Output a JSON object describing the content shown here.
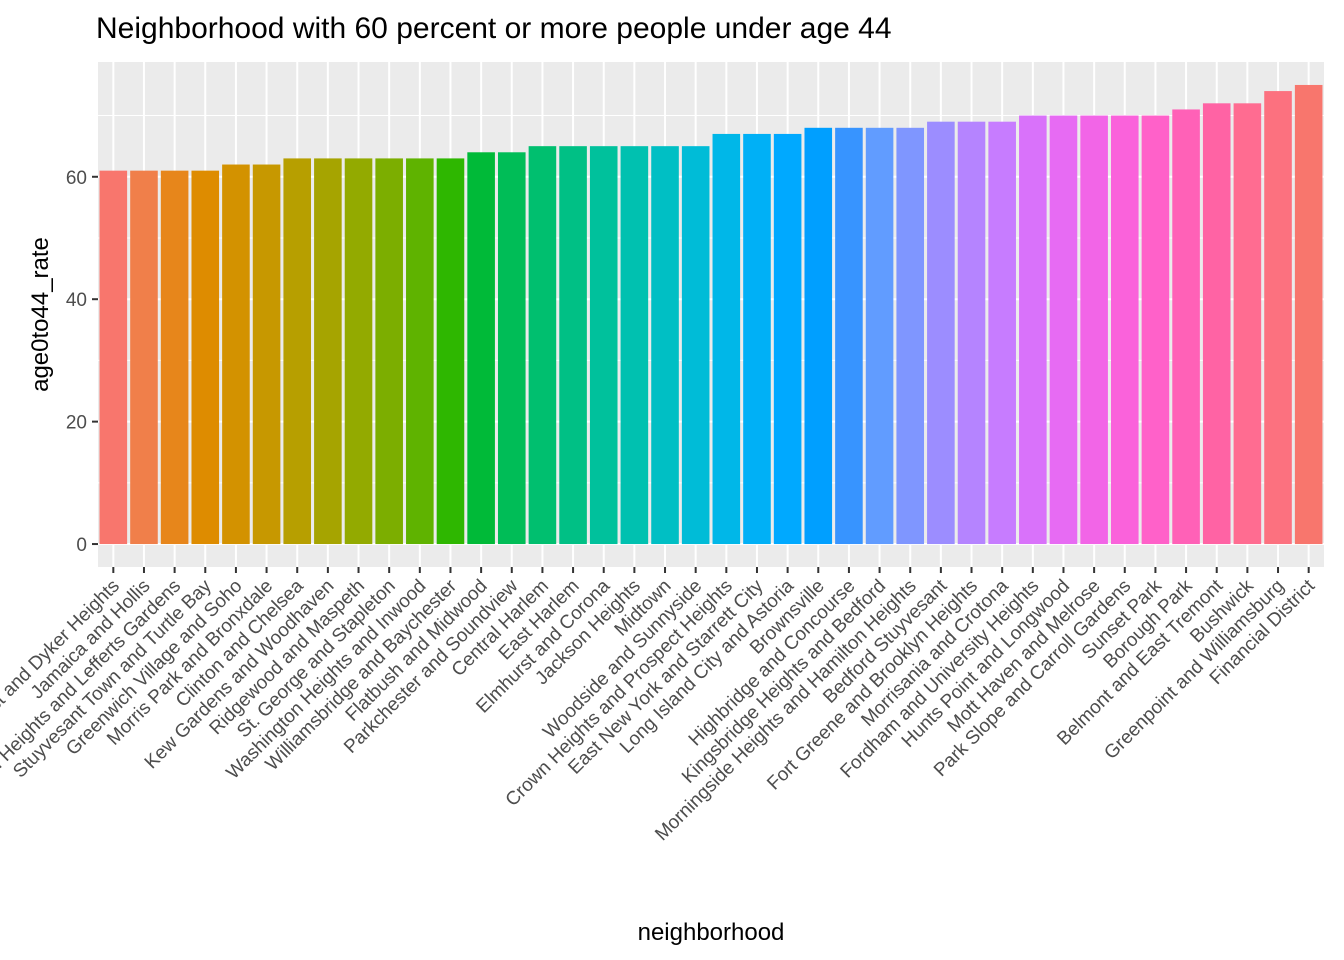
{
  "chart_data": {
    "type": "bar",
    "title": "Neighborhood with 60 percent or more people under age 44",
    "xlabel": "neighborhood",
    "ylabel": "age0to44_rate",
    "ylim": [
      -3.75,
      78.75
    ],
    "yticks": [
      0,
      20,
      40,
      60
    ],
    "grid": true,
    "legend": "none",
    "categories": [
      "Bensonhurst and Dyker Heights",
      "Jamaica and Hollis",
      "Crown Heights and Lefferts Gardens",
      "Stuyvesant Town and Turtle Bay",
      "Greenwich Village and Soho",
      "Morris Park and Bronxdale",
      "Clinton and Chelsea",
      "Kew Gardens and Woodhaven",
      "Ridgewood and Maspeth",
      "St. George and Stapleton",
      "Washington Heights and Inwood",
      "Williamsbridge and Baychester",
      "Flatbush and Midwood",
      "Parkchester and Soundview",
      "Central Harlem",
      "East Harlem",
      "Elmhurst and Corona",
      "Jackson Heights",
      "Midtown",
      "Woodside and Sunnyside",
      "Crown Heights and Prospect Heights",
      "East New York and Starrett City",
      "Long Island City and Astoria",
      "Brownsville",
      "Highbridge and Concourse",
      "Kingsbridge Heights and Bedford",
      "Morningside Heights and Hamilton Heights",
      "Bedford Stuyvesant",
      "Fort Greene and Brooklyn Heights",
      "Morrisania and Crotona",
      "Fordham and University Heights",
      "Hunts Point and Longwood",
      "Mott Haven and Melrose",
      "Park Slope and Carroll Gardens",
      "Sunset Park",
      "Borough Park",
      "Belmont and East Tremont",
      "Bushwick",
      "Greenpoint and Williamsburg",
      "Financial District"
    ],
    "values": [
      61,
      61,
      61,
      61,
      62,
      62,
      63,
      63,
      63,
      63,
      63,
      63,
      64,
      64,
      65,
      65,
      65,
      65,
      65,
      65,
      67,
      67,
      67,
      68,
      68,
      68,
      68,
      69,
      69,
      69,
      70,
      70,
      70,
      70,
      70,
      71,
      72,
      72,
      74,
      75
    ],
    "colors": [
      "#F8766D",
      "#F07F4A",
      "#E7861B",
      "#DE8C00",
      "#D39200",
      "#C79800",
      "#B79F00",
      "#A6A400",
      "#93AA00",
      "#7CAE00",
      "#5FB300",
      "#2EB700",
      "#00BA38",
      "#00BD57",
      "#00BF6F",
      "#00C085",
      "#00C19C",
      "#00C1B0",
      "#00BFC4",
      "#00BCD7",
      "#00B7E8",
      "#00B0F6",
      "#00A9FF",
      "#009FFF",
      "#3794FF",
      "#619CFF",
      "#7F96FF",
      "#9C8DFF",
      "#B584FF",
      "#C77CFF",
      "#D972FA",
      "#E76BF3",
      "#F265E7",
      "#FA62DB",
      "#FF61C9",
      "#FF61B7",
      "#FF63A4",
      "#FF6C91",
      "#FC717F",
      "#F8766D"
    ]
  }
}
